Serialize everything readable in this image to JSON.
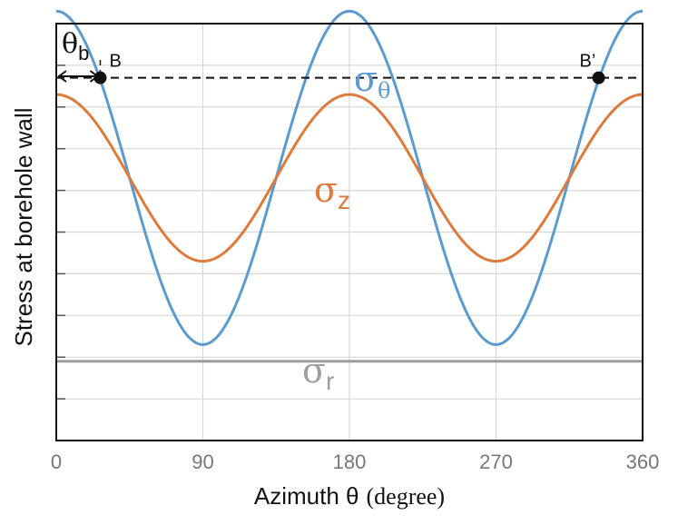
{
  "chart_data": {
    "type": "line",
    "title": "",
    "xlabel": "Azimuth θ",
    "xlabel_unit": "(degree)",
    "ylabel": "Stress at borehole wall",
    "xlim": [
      0,
      360
    ],
    "ylim": [
      0,
      10
    ],
    "xticks": [
      "0",
      "90",
      "180",
      "270",
      "360"
    ],
    "grid": true,
    "x": [
      0,
      45,
      90,
      135,
      180,
      225,
      270,
      315,
      360
    ],
    "series": [
      {
        "key": "sigma_theta",
        "symbol": "σ",
        "subscript": "θ",
        "color": "#5b9bd0",
        "values": [
          10.3,
          6.3,
          2.3,
          6.3,
          10.3,
          6.3,
          2.3,
          6.3,
          10.3
        ]
      },
      {
        "key": "sigma_z",
        "symbol": "σ",
        "subscript": "z",
        "color": "#e07a3c",
        "values": [
          8.3,
          6.3,
          4.3,
          6.3,
          8.3,
          6.3,
          4.3,
          6.3,
          8.3
        ]
      },
      {
        "key": "sigma_r",
        "symbol": "σ",
        "subscript": "r",
        "color": "#9e9e9e",
        "values": [
          1.9,
          1.9,
          1.9,
          1.9,
          1.9,
          1.9,
          1.9,
          1.9,
          1.9
        ]
      }
    ],
    "threshold": {
      "y": 8.7,
      "style": "dashed"
    },
    "points": [
      {
        "label": "B",
        "x": 27
      },
      {
        "label": "B’",
        "x": 333
      }
    ],
    "annotation": {
      "symbol": "θ",
      "subscript": "b",
      "x_from": 0,
      "x_to": 27
    }
  }
}
